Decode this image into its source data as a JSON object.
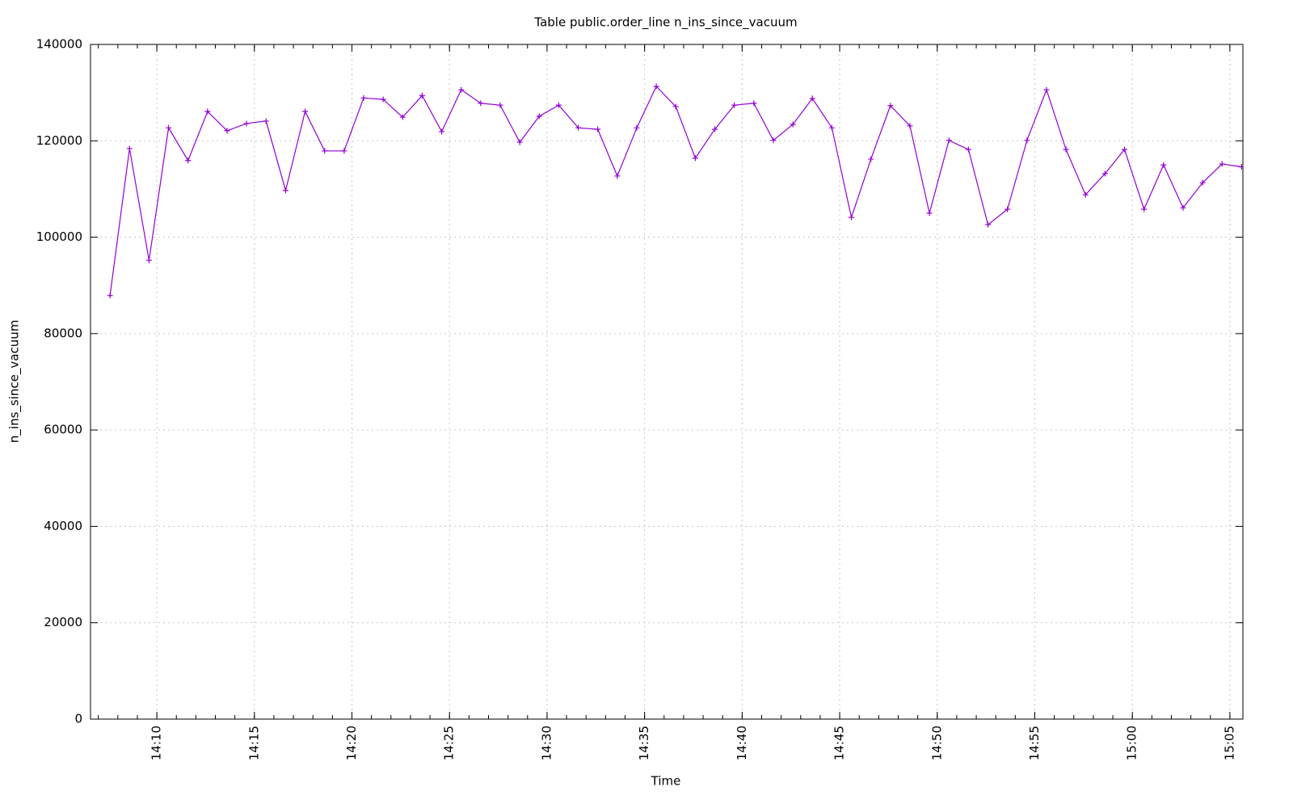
{
  "chart_data": {
    "type": "line",
    "title": "Table public.order_line n_ins_since_vacuum",
    "xlabel": "Time",
    "ylabel": "n_ins_since_vacuum",
    "x": [
      "14:07:36",
      "14:08:36",
      "14:09:36",
      "14:10:36",
      "14:11:36",
      "14:12:36",
      "14:13:36",
      "14:14:36",
      "14:15:36",
      "14:16:36",
      "14:17:36",
      "14:18:36",
      "14:19:36",
      "14:20:36",
      "14:21:36",
      "14:22:36",
      "14:23:36",
      "14:24:36",
      "14:25:36",
      "14:26:36",
      "14:27:36",
      "14:28:36",
      "14:29:36",
      "14:30:36",
      "14:31:36",
      "14:32:36",
      "14:33:36",
      "14:34:36",
      "14:35:36",
      "14:36:36",
      "14:37:36",
      "14:38:36",
      "14:39:36",
      "14:40:36",
      "14:41:36",
      "14:42:36",
      "14:43:36",
      "14:44:36",
      "14:45:36",
      "14:46:36",
      "14:47:36",
      "14:48:36",
      "14:49:36",
      "14:50:36",
      "14:51:36",
      "14:52:36",
      "14:53:36",
      "14:54:36",
      "14:55:36",
      "14:56:36",
      "14:57:36",
      "14:58:36",
      "14:59:36",
      "15:00:36",
      "15:01:36",
      "15:02:36",
      "15:03:36",
      "15:04:36",
      "15:05:36"
    ],
    "series": [
      {
        "name": "n_ins_since_vacuum",
        "color": "#9400d3",
        "values": [
          87900,
          118400,
          95200,
          122700,
          115900,
          126100,
          122100,
          123600,
          124100,
          109700,
          126100,
          117900,
          117900,
          128900,
          128600,
          124900,
          129400,
          121900,
          130600,
          127800,
          127400,
          119700,
          125100,
          127400,
          122700,
          122400,
          112700,
          122700,
          131300,
          127100,
          116400,
          122400,
          127400,
          127800,
          120100,
          123400,
          128800,
          122700,
          104100,
          116200,
          127300,
          123100,
          105000,
          120100,
          118200,
          102600,
          105800,
          120100,
          130600,
          118200,
          108800,
          113200,
          118200,
          105800,
          115000,
          106100,
          111300,
          115200,
          114600
        ]
      }
    ],
    "xlim": [
      "14:06:36",
      "15:05:40"
    ],
    "xticks": [
      "14:10",
      "14:15",
      "14:20",
      "14:25",
      "14:30",
      "14:35",
      "14:40",
      "14:45",
      "14:50",
      "14:55",
      "15:00",
      "15:05"
    ],
    "ylim": [
      0,
      140000
    ],
    "yticks": [
      0,
      20000,
      40000,
      60000,
      80000,
      100000,
      120000,
      140000
    ],
    "grid": true
  }
}
